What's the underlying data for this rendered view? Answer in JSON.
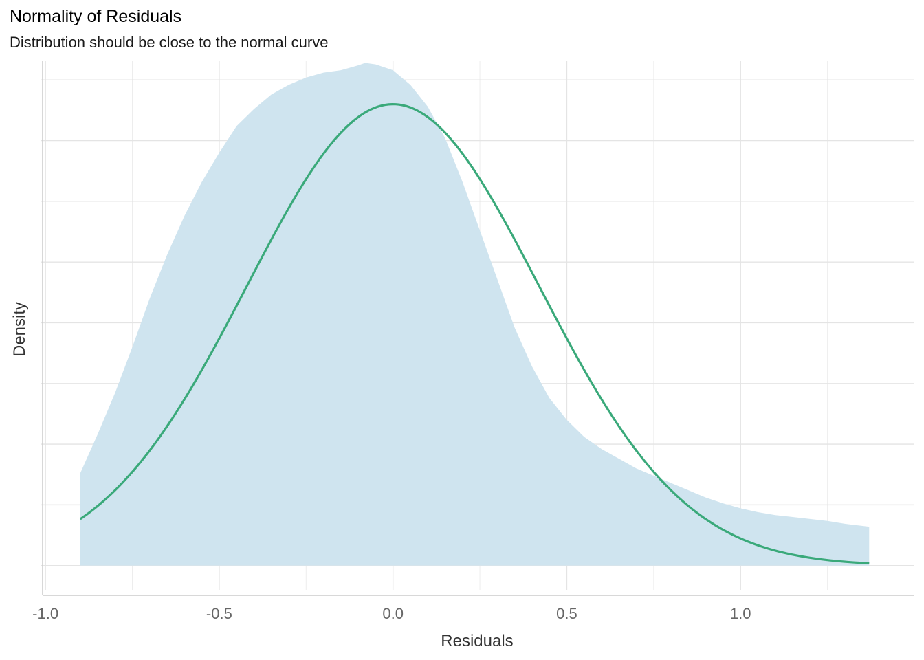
{
  "chart_data": {
    "type": "area",
    "title": "Normality of Residuals",
    "subtitle": "Distribution should be close to the normal curve",
    "xlabel": "Residuals",
    "ylabel": "Density",
    "xlim": [
      -1.02,
      1.5
    ],
    "ylim": [
      -0.05,
      1.04
    ],
    "x_ticks": [
      -1.0,
      -0.5,
      0.0,
      0.5,
      1.0
    ],
    "x_tick_labels": [
      "-1.0",
      "-0.5",
      "0.0",
      "0.5",
      "1.0"
    ],
    "y_ticks": [
      0,
      0.125,
      0.25,
      0.375,
      0.5,
      0.625,
      0.75,
      0.875,
      1.0
    ],
    "y_tick_labels_shown": false,
    "grid": true,
    "series": [
      {
        "kind": "density-area",
        "color": "#cfe4ef",
        "x": [
          -0.9,
          -0.85,
          -0.8,
          -0.75,
          -0.7,
          -0.65,
          -0.6,
          -0.55,
          -0.5,
          -0.45,
          -0.4,
          -0.35,
          -0.3,
          -0.25,
          -0.2,
          -0.15,
          -0.1,
          -0.08,
          -0.05,
          0.0,
          0.05,
          0.1,
          0.15,
          0.2,
          0.25,
          0.3,
          0.35,
          0.4,
          0.45,
          0.5,
          0.55,
          0.6,
          0.65,
          0.7,
          0.75,
          0.8,
          0.85,
          0.9,
          0.95,
          1.0,
          1.05,
          1.1,
          1.15,
          1.2,
          1.25,
          1.3,
          1.37
        ],
        "y": [
          0.19,
          0.27,
          0.355,
          0.45,
          0.55,
          0.64,
          0.72,
          0.79,
          0.85,
          0.905,
          0.94,
          0.97,
          0.99,
          1.005,
          1.015,
          1.02,
          1.03,
          1.035,
          1.032,
          1.02,
          0.99,
          0.945,
          0.88,
          0.79,
          0.69,
          0.59,
          0.49,
          0.41,
          0.345,
          0.3,
          0.265,
          0.24,
          0.22,
          0.2,
          0.185,
          0.17,
          0.155,
          0.14,
          0.128,
          0.118,
          0.11,
          0.104,
          0.1,
          0.096,
          0.092,
          0.086,
          0.08
        ]
      },
      {
        "kind": "normal-curve",
        "color": "#3aa97a",
        "mean": 0.0,
        "sd": 0.42,
        "peak": 0.95,
        "x_range": [
          -0.9,
          1.37
        ]
      }
    ]
  }
}
